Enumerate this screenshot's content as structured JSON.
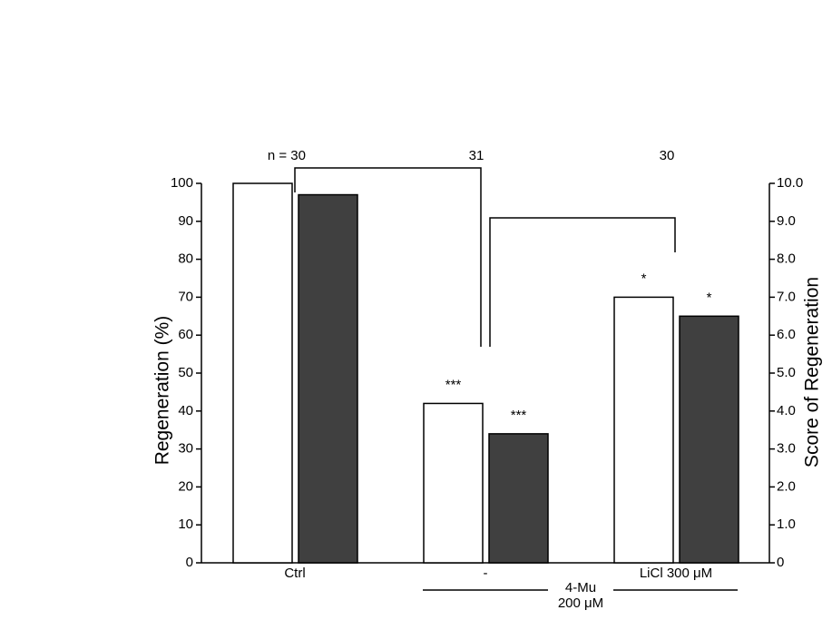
{
  "chart_data": {
    "type": "bar",
    "categories": [
      "Ctrl",
      "-",
      "LiCl 300 μM"
    ],
    "group_label": [
      "4-Mu",
      "200 μM"
    ],
    "n_labels": [
      "n = 30",
      "31",
      "30"
    ],
    "ylabel": "Regeneration (%)",
    "y2label": "Score of Regeneration",
    "ylim": [
      0,
      100
    ],
    "yticks": [
      0,
      10,
      20,
      30,
      40,
      50,
      60,
      70,
      80,
      90,
      100
    ],
    "y2lim": [
      0,
      10
    ],
    "y2ticks": [
      0,
      {
        "value": 1,
        "label": "1.0"
      },
      {
        "value": 2,
        "label": "2.0"
      },
      {
        "value": 3,
        "label": "3.0"
      },
      {
        "value": 4,
        "label": "4.0"
      },
      {
        "value": 5,
        "label": "5.0"
      },
      {
        "value": 6,
        "label": "6.0"
      },
      {
        "value": 7,
        "label": "7.0"
      },
      {
        "value": 8,
        "label": "8.0"
      },
      {
        "value": 9,
        "label": "9.0"
      },
      {
        "value": 10,
        "label": "10.0"
      }
    ],
    "series": [
      {
        "color": "#ffffff",
        "values": [
          100,
          42,
          70
        ],
        "significance": [
          null,
          "***",
          "*"
        ]
      },
      {
        "color": "#404040",
        "axis": "y2",
        "values": [
          9.7,
          3.4,
          6.5
        ],
        "significance": [
          null,
          "***",
          "*"
        ]
      }
    ]
  }
}
